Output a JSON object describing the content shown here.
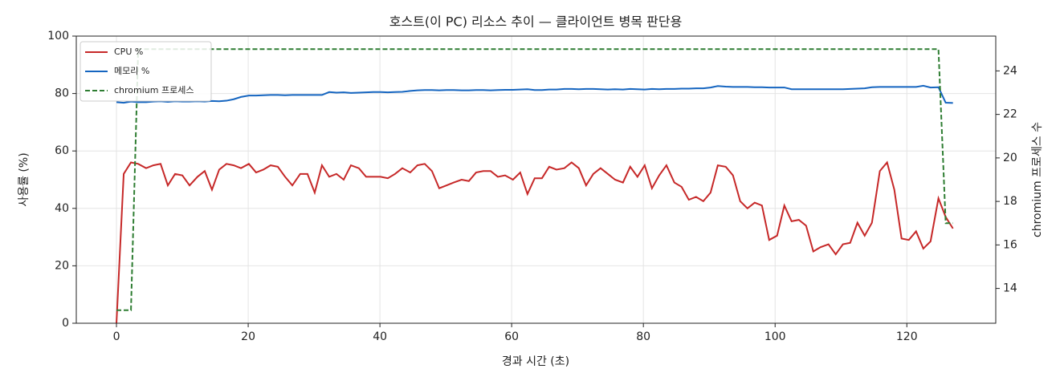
{
  "chart_data": {
    "type": "line",
    "title": "호스트(이 PC) 리소스 추이 — 클라이언트 병목 판단용",
    "x_label": "경과 시간 (초)",
    "y_label": "사용률 (%)",
    "y2_label": "chromium 프로세스 수",
    "x": [
      0,
      1.1,
      2.2,
      3.3,
      4.5,
      5.6,
      6.7,
      7.8,
      8.9,
      10.0,
      11.1,
      12.3,
      13.4,
      14.5,
      15.6,
      16.7,
      17.8,
      18.9,
      20.1,
      21.2,
      22.3,
      23.4,
      24.5,
      25.6,
      26.7,
      27.9,
      29.0,
      30.1,
      31.2,
      32.3,
      33.4,
      34.5,
      35.6,
      36.8,
      37.9,
      39.0,
      40.1,
      41.2,
      42.3,
      43.4,
      44.6,
      45.7,
      46.8,
      47.9,
      49.0,
      50.1,
      51.2,
      52.4,
      53.5,
      54.6,
      55.7,
      56.8,
      57.9,
      59.0,
      60.2,
      61.3,
      62.4,
      63.5,
      64.6,
      65.7,
      66.8,
      68.0,
      69.1,
      70.2,
      71.3,
      72.4,
      73.5,
      74.6,
      75.7,
      76.9,
      78.0,
      79.1,
      80.2,
      81.3,
      82.4,
      83.5,
      84.7,
      85.8,
      86.9,
      88.0,
      89.1,
      90.2,
      91.3,
      92.5,
      93.6,
      94.7,
      95.8,
      96.9,
      98.0,
      99.1,
      100.3,
      101.4,
      102.5,
      103.6,
      104.7,
      105.8,
      106.9,
      108.1,
      109.2,
      110.3,
      111.4,
      112.5,
      113.6,
      114.7,
      115.9,
      117.0,
      118.1,
      119.2,
      120.3,
      121.4,
      122.5,
      123.6,
      124.8,
      125.9,
      127.0
    ],
    "series": [
      {
        "name": "CPU %",
        "color": "#c62828",
        "dash": false,
        "values": [
          0,
          52,
          56,
          55.5,
          54,
          55,
          55.5,
          48,
          52,
          51.5,
          48,
          51,
          53,
          46.5,
          53.5,
          55.5,
          55,
          54,
          55.5,
          52.5,
          53.5,
          55,
          54.5,
          51,
          48,
          52,
          52,
          45.5,
          55,
          51,
          52,
          50,
          55,
          54,
          51,
          51,
          51,
          50.5,
          52,
          54,
          52.5,
          55,
          55.5,
          53,
          47,
          48,
          49,
          50,
          49.5,
          52.5,
          53,
          53,
          51,
          51.5,
          50,
          52.5,
          45,
          50.5,
          50.5,
          54.5,
          53.5,
          54,
          56,
          54,
          48,
          52,
          54,
          52,
          50,
          49,
          54.5,
          51,
          55,
          47,
          51.5,
          55,
          49,
          47.5,
          43,
          44,
          42.5,
          45.5,
          55,
          54.5,
          51.5,
          42.5,
          40,
          42,
          41,
          29,
          30.5,
          41,
          35.5,
          36,
          34,
          25,
          26.5,
          27.5,
          24,
          27.5,
          28,
          35,
          30.5,
          35,
          53,
          56,
          46.5,
          29.5,
          29,
          32,
          26,
          28.5,
          43.5,
          37,
          33
        ]
      },
      {
        "name": "메모리 %",
        "color": "#1565c0",
        "dash": false,
        "values": [
          77,
          76.8,
          77.2,
          77,
          77,
          77.2,
          77.3,
          77.1,
          77.3,
          77.2,
          77.2,
          77.3,
          77.2,
          77.4,
          77.3,
          77.5,
          78,
          78.8,
          79.3,
          79.3,
          79.4,
          79.5,
          79.5,
          79.4,
          79.5,
          79.5,
          79.5,
          79.5,
          79.5,
          80.5,
          80.3,
          80.4,
          80.2,
          80.3,
          80.4,
          80.5,
          80.5,
          80.4,
          80.5,
          80.6,
          80.9,
          81.1,
          81.2,
          81.2,
          81.1,
          81.2,
          81.2,
          81.1,
          81.1,
          81.2,
          81.2,
          81.1,
          81.2,
          81.3,
          81.3,
          81.4,
          81.5,
          81.2,
          81.2,
          81.4,
          81.4,
          81.6,
          81.6,
          81.5,
          81.6,
          81.6,
          81.5,
          81.4,
          81.5,
          81.4,
          81.6,
          81.5,
          81.4,
          81.6,
          81.5,
          81.6,
          81.6,
          81.7,
          81.7,
          81.8,
          81.8,
          82.1,
          82.6,
          82.4,
          82.3,
          82.3,
          82.3,
          82.2,
          82.2,
          82.1,
          82.1,
          82.1,
          81.5,
          81.5,
          81.5,
          81.5,
          81.5,
          81.5,
          81.5,
          81.5,
          81.6,
          81.7,
          81.8,
          82.2,
          82.3,
          82.3,
          82.3,
          82.3,
          82.3,
          82.3,
          82.7,
          82.1,
          82.2,
          76.8,
          76.7
        ]
      },
      {
        "name": "chromium 프로세스",
        "color": "#2e7d32",
        "dash": true,
        "axis": "y2",
        "values": [
          13,
          13,
          13,
          25,
          25,
          25,
          25,
          25,
          25,
          25,
          25,
          25,
          25,
          25,
          25,
          25,
          25,
          25,
          25,
          25,
          25,
          25,
          25,
          25,
          25,
          25,
          25,
          25,
          25,
          25,
          25,
          25,
          25,
          25,
          25,
          25,
          25,
          25,
          25,
          25,
          25,
          25,
          25,
          25,
          25,
          25,
          25,
          25,
          25,
          25,
          25,
          25,
          25,
          25,
          25,
          25,
          25,
          25,
          25,
          25,
          25,
          25,
          25,
          25,
          25,
          25,
          25,
          25,
          25,
          25,
          25,
          25,
          25,
          25,
          25,
          25,
          25,
          25,
          25,
          25,
          25,
          25,
          25,
          25,
          25,
          25,
          25,
          25,
          25,
          25,
          25,
          25,
          25,
          25,
          25,
          25,
          25,
          25,
          25,
          25,
          25,
          25,
          25,
          25,
          25,
          25,
          25,
          25,
          25,
          25,
          25,
          25,
          25,
          17,
          17
        ]
      }
    ],
    "xlim": [
      -6.1,
      133.5
    ],
    "xticks": [
      0,
      20,
      40,
      60,
      80,
      100,
      120
    ],
    "ylim": [
      0,
      100
    ],
    "yticks": [
      0,
      20,
      40,
      60,
      80,
      100
    ],
    "y2lim": [
      12.4,
      25.6
    ],
    "y2ticks": [
      14,
      16,
      18,
      20,
      22,
      24
    ],
    "grid": true,
    "legend": "upper-left"
  }
}
